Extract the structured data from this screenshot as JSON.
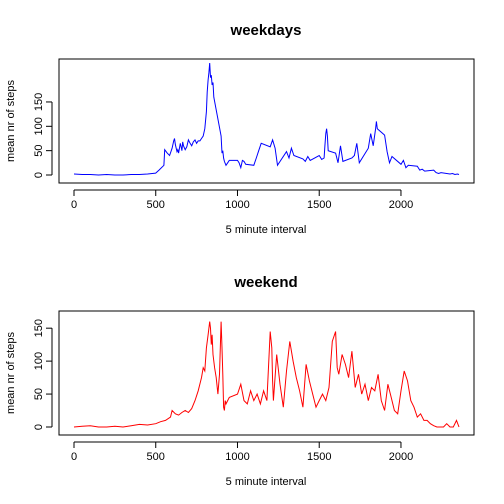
{
  "chart_data": [
    {
      "type": "line",
      "title": "weekdays",
      "xlabel": "5 minute interval",
      "ylabel": "mean nr of steps",
      "xlim": [
        0,
        2355
      ],
      "ylim": [
        0,
        230
      ],
      "xticks": [
        0,
        500,
        1000,
        1500,
        2000
      ],
      "yticks": [
        0,
        50,
        100,
        150
      ],
      "series": [
        {
          "color": "#0000ff",
          "x": [
            0,
            50,
            100,
            150,
            200,
            250,
            300,
            350,
            400,
            450,
            500,
            520,
            550,
            555,
            570,
            585,
            600,
            610,
            615,
            620,
            625,
            630,
            635,
            640,
            650,
            655,
            660,
            665,
            670,
            680,
            690,
            700,
            710,
            720,
            730,
            740,
            750,
            760,
            770,
            780,
            790,
            800,
            810,
            815,
            820,
            825,
            830,
            835,
            840,
            845,
            850,
            855,
            900,
            905,
            910,
            915,
            920,
            930,
            940,
            950,
            1000,
            1010,
            1020,
            1030,
            1040,
            1050,
            1100,
            1115,
            1130,
            1145,
            1200,
            1215,
            1230,
            1245,
            1300,
            1315,
            1330,
            1345,
            1400,
            1415,
            1430,
            1445,
            1500,
            1515,
            1530,
            1535,
            1540,
            1545,
            1550,
            1555,
            1600,
            1615,
            1630,
            1645,
            1700,
            1715,
            1730,
            1745,
            1800,
            1815,
            1830,
            1845,
            1850,
            1855,
            1900,
            1915,
            1930,
            1945,
            2000,
            2015,
            2030,
            2045,
            2100,
            2115,
            2130,
            2145,
            2200,
            2215,
            2230,
            2245,
            2300,
            2315,
            2330,
            2345,
            2355
          ],
          "y": [
            2,
            1,
            1,
            0,
            1,
            0,
            0,
            1,
            1,
            2,
            4,
            10,
            20,
            52,
            45,
            40,
            55,
            70,
            75,
            62,
            55,
            48,
            52,
            45,
            65,
            58,
            50,
            68,
            60,
            52,
            58,
            72,
            65,
            60,
            68,
            72,
            65,
            70,
            70,
            75,
            80,
            95,
            130,
            170,
            195,
            210,
            230,
            200,
            205,
            185,
            190,
            160,
            80,
            45,
            50,
            35,
            28,
            20,
            25,
            30,
            30,
            25,
            15,
            30,
            28,
            22,
            20,
            35,
            50,
            65,
            58,
            72,
            55,
            20,
            48,
            35,
            55,
            40,
            33,
            28,
            38,
            30,
            40,
            32,
            35,
            60,
            85,
            95,
            80,
            50,
            45,
            25,
            60,
            28,
            35,
            40,
            65,
            25,
            55,
            85,
            60,
            95,
            110,
            95,
            82,
            48,
            25,
            38,
            22,
            30,
            15,
            20,
            18,
            10,
            12,
            8,
            10,
            5,
            3,
            5,
            2,
            3,
            1,
            2,
            1
          ]
        }
      ]
    },
    {
      "type": "line",
      "title": "weekend",
      "xlabel": "5 minute interval",
      "ylabel": "mean nr of steps",
      "xlim": [
        0,
        2355
      ],
      "ylim": [
        0,
        170
      ],
      "xticks": [
        0,
        500,
        1000,
        1500,
        2000
      ],
      "yticks": [
        0,
        50,
        100,
        150
      ],
      "series": [
        {
          "color": "#ff0000",
          "x": [
            0,
            50,
            100,
            150,
            200,
            250,
            300,
            350,
            400,
            450,
            500,
            530,
            560,
            590,
            600,
            620,
            640,
            660,
            680,
            700,
            720,
            740,
            760,
            780,
            790,
            800,
            810,
            820,
            830,
            835,
            840,
            845,
            850,
            860,
            870,
            880,
            890,
            900,
            905,
            910,
            915,
            920,
            925,
            930,
            950,
            1000,
            1020,
            1040,
            1060,
            1080,
            1100,
            1120,
            1140,
            1160,
            1180,
            1200,
            1210,
            1215,
            1220,
            1240,
            1260,
            1280,
            1300,
            1320,
            1340,
            1360,
            1380,
            1400,
            1420,
            1440,
            1460,
            1480,
            1500,
            1520,
            1540,
            1560,
            1580,
            1600,
            1610,
            1620,
            1640,
            1660,
            1680,
            1700,
            1720,
            1740,
            1760,
            1780,
            1800,
            1820,
            1840,
            1860,
            1880,
            1900,
            1920,
            1940,
            1960,
            1980,
            2000,
            2020,
            2040,
            2060,
            2080,
            2100,
            2120,
            2140,
            2160,
            2180,
            2200,
            2220,
            2240,
            2260,
            2280,
            2300,
            2320,
            2340,
            2355
          ],
          "y": [
            0,
            1,
            2,
            0,
            0,
            1,
            0,
            2,
            4,
            3,
            5,
            8,
            10,
            15,
            25,
            20,
            18,
            22,
            25,
            22,
            28,
            40,
            55,
            75,
            90,
            85,
            120,
            140,
            160,
            150,
            125,
            140,
            110,
            90,
            75,
            50,
            80,
            160,
            120,
            80,
            30,
            25,
            40,
            35,
            45,
            50,
            65,
            40,
            35,
            55,
            40,
            50,
            35,
            55,
            40,
            145,
            120,
            70,
            40,
            110,
            65,
            30,
            85,
            130,
            100,
            75,
            55,
            30,
            95,
            70,
            50,
            30,
            40,
            50,
            40,
            60,
            130,
            145,
            90,
            80,
            110,
            95,
            75,
            115,
            60,
            80,
            50,
            65,
            40,
            60,
            55,
            80,
            40,
            25,
            65,
            45,
            25,
            20,
            55,
            85,
            70,
            40,
            30,
            15,
            20,
            10,
            10,
            5,
            2,
            0,
            0,
            0,
            5,
            0,
            0,
            10,
            0
          ]
        }
      ]
    }
  ]
}
